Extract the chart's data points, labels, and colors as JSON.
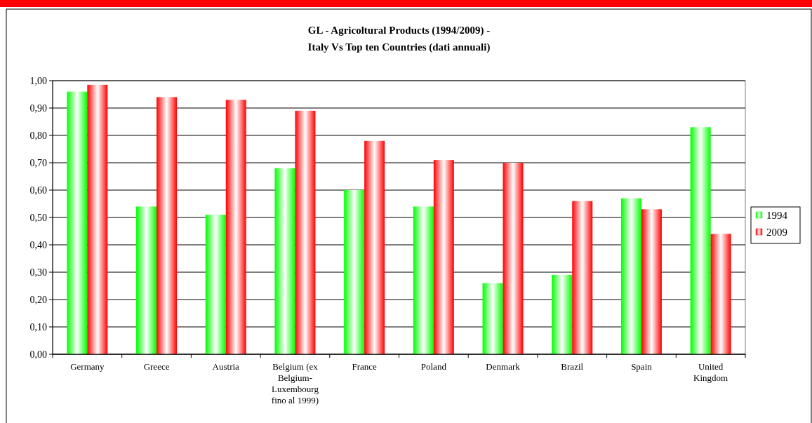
{
  "chart_data": {
    "type": "bar",
    "title": "GL - Agricoltural Products (1994/2009) -",
    "subtitle": "Italy Vs Top ten Countries (dati annuali)",
    "categories": [
      "Germany",
      "Greece",
      "Austria",
      "Belgium (ex Belgium-Luxembourg fino al 1999)",
      "France",
      "Poland",
      "Denmark",
      "Brazil",
      "Spain",
      "United Kingdom"
    ],
    "series": [
      {
        "name": "1994",
        "color": "#00ff00",
        "values": [
          0.96,
          0.54,
          0.51,
          0.68,
          0.6,
          0.54,
          0.26,
          0.29,
          0.57,
          0.83
        ]
      },
      {
        "name": "2009",
        "color": "#ff0000",
        "values": [
          0.985,
          0.94,
          0.93,
          0.89,
          0.78,
          0.71,
          0.7,
          0.56,
          0.53,
          0.44
        ]
      }
    ],
    "ylim": [
      0,
      1
    ],
    "yticks": [
      {
        "value": 0,
        "label": "0,00"
      },
      {
        "value": 0.1,
        "label": "0,10"
      },
      {
        "value": 0.2,
        "label": "0,20"
      },
      {
        "value": 0.3,
        "label": "0,30"
      },
      {
        "value": 0.4,
        "label": "0,40"
      },
      {
        "value": 0.5,
        "label": "0,50"
      },
      {
        "value": 0.6,
        "label": "0,60"
      },
      {
        "value": 0.7,
        "label": "0,70"
      },
      {
        "value": 0.8,
        "label": "0,80"
      },
      {
        "value": 0.9,
        "label": "0,90"
      },
      {
        "value": 1,
        "label": "1,00"
      }
    ],
    "grid": "y",
    "legend": "right"
  }
}
